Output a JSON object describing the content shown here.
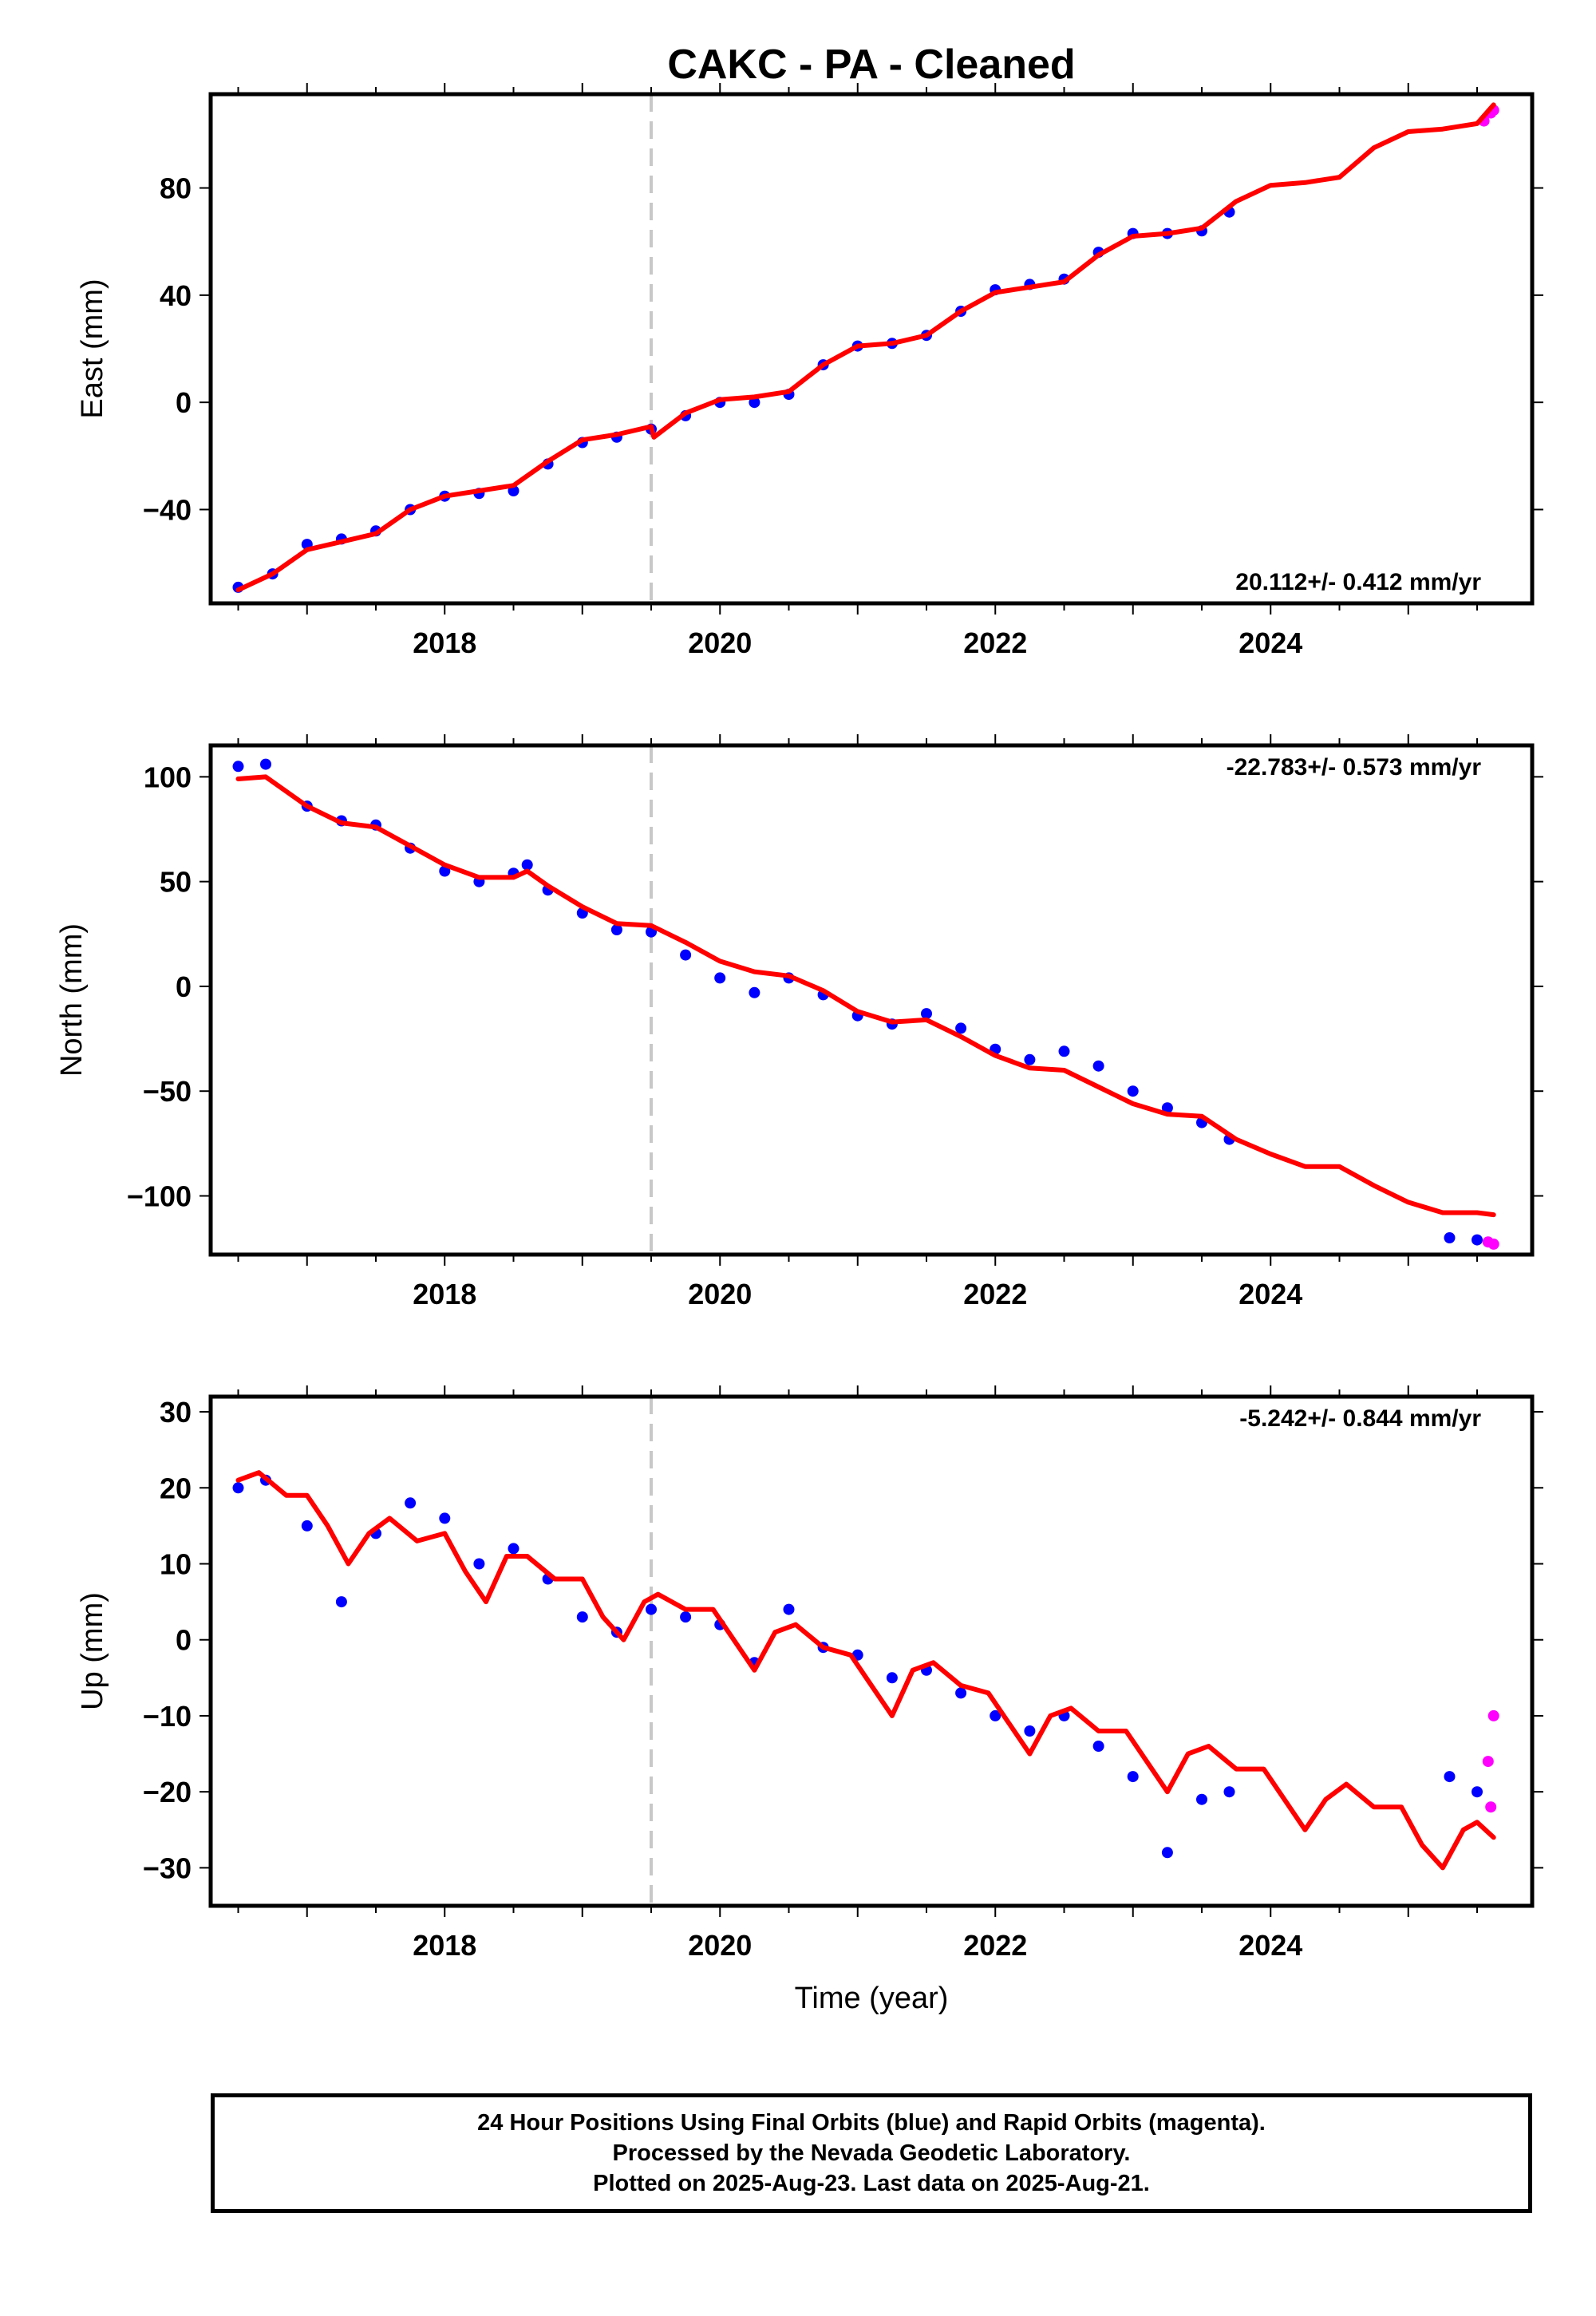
{
  "title": "CAKC  - PA - Cleaned",
  "x_axis_label": "Time (year)",
  "footer": {
    "line1": "24 Hour Positions Using Final Orbits (blue) and Rapid Orbits (magenta).",
    "line2": "Processed by the Nevada Geodetic Laboratory.",
    "line3": "Plotted on 2025-Aug-23. Last data on 2025-Aug-21."
  },
  "colors": {
    "final": "#0000ff",
    "rapid": "#ff00ff",
    "model": "#ff0000",
    "event_line": "#c8c8c8"
  },
  "chart_data": [
    {
      "type": "scatter",
      "panel": "east",
      "ylabel": "East (mm)",
      "rate_label": "20.112+/- 0.412 mm/yr",
      "xlim": [
        2016.3,
        2025.9
      ],
      "ylim": [
        -75,
        115
      ],
      "xticks": [
        2018,
        2020,
        2022,
        2024
      ],
      "yticks": [
        -40,
        0,
        40,
        80
      ],
      "event_line_x": 2019.5,
      "grid": false,
      "series": [
        {
          "kind": "final",
          "points": [
            [
              2016.5,
              -69
            ],
            [
              2016.75,
              -64
            ],
            [
              2017.0,
              -53
            ],
            [
              2017.25,
              -51
            ],
            [
              2017.5,
              -48
            ],
            [
              2017.75,
              -40
            ],
            [
              2018.0,
              -35
            ],
            [
              2018.25,
              -34
            ],
            [
              2018.5,
              -33
            ],
            [
              2018.75,
              -23
            ],
            [
              2019.0,
              -15
            ],
            [
              2019.25,
              -13
            ],
            [
              2019.5,
              -10
            ],
            [
              2019.75,
              -5
            ],
            [
              2020.0,
              0
            ],
            [
              2020.25,
              0
            ],
            [
              2020.5,
              3
            ],
            [
              2020.75,
              14
            ],
            [
              2021.0,
              21
            ],
            [
              2021.25,
              22
            ],
            [
              2021.5,
              25
            ],
            [
              2021.75,
              34
            ],
            [
              2022.0,
              42
            ],
            [
              2022.25,
              44
            ],
            [
              2022.5,
              46
            ],
            [
              2022.75,
              56
            ],
            [
              2023.0,
              63
            ],
            [
              2023.25,
              63
            ],
            [
              2023.5,
              64
            ],
            [
              2023.7,
              71
            ]
          ]
        },
        {
          "kind": "rapid",
          "points": [
            [
              2025.55,
              105
            ],
            [
              2025.6,
              108
            ],
            [
              2025.62,
              109
            ]
          ]
        },
        {
          "kind": "model",
          "points": [
            [
              2016.5,
              -70
            ],
            [
              2016.75,
              -64
            ],
            [
              2017.0,
              -55
            ],
            [
              2017.25,
              -52
            ],
            [
              2017.5,
              -49
            ],
            [
              2017.75,
              -40
            ],
            [
              2018.0,
              -35
            ],
            [
              2018.25,
              -33
            ],
            [
              2018.5,
              -31
            ],
            [
              2018.75,
              -22
            ],
            [
              2019.0,
              -14
            ],
            [
              2019.25,
              -12
            ],
            [
              2019.5,
              -9
            ],
            [
              2019.52,
              -13
            ],
            [
              2019.75,
              -4
            ],
            [
              2020.0,
              1
            ],
            [
              2020.25,
              2
            ],
            [
              2020.5,
              4
            ],
            [
              2020.75,
              14
            ],
            [
              2021.0,
              21
            ],
            [
              2021.25,
              22
            ],
            [
              2021.5,
              25
            ],
            [
              2021.75,
              34
            ],
            [
              2022.0,
              41
            ],
            [
              2022.25,
              43
            ],
            [
              2022.5,
              45
            ],
            [
              2022.75,
              55
            ],
            [
              2023.0,
              62
            ],
            [
              2023.25,
              63
            ],
            [
              2023.5,
              65
            ],
            [
              2023.75,
              75
            ],
            [
              2024.0,
              81
            ],
            [
              2024.25,
              82
            ],
            [
              2024.5,
              84
            ],
            [
              2024.75,
              95
            ],
            [
              2025.0,
              101
            ],
            [
              2025.25,
              102
            ],
            [
              2025.5,
              104
            ],
            [
              2025.62,
              111
            ]
          ]
        }
      ]
    },
    {
      "type": "scatter",
      "panel": "north",
      "ylabel": "North (mm)",
      "rate_label": "-22.783+/- 0.573 mm/yr",
      "xlim": [
        2016.3,
        2025.9
      ],
      "ylim": [
        -128,
        115
      ],
      "xticks": [
        2018,
        2020,
        2022,
        2024
      ],
      "yticks": [
        -100,
        -50,
        0,
        50,
        100
      ],
      "event_line_x": 2019.5,
      "grid": false,
      "series": [
        {
          "kind": "final",
          "points": [
            [
              2016.5,
              105
            ],
            [
              2016.7,
              106
            ],
            [
              2017.0,
              86
            ],
            [
              2017.25,
              79
            ],
            [
              2017.5,
              77
            ],
            [
              2017.75,
              66
            ],
            [
              2018.0,
              55
            ],
            [
              2018.25,
              50
            ],
            [
              2018.5,
              54
            ],
            [
              2018.6,
              58
            ],
            [
              2018.75,
              46
            ],
            [
              2019.0,
              35
            ],
            [
              2019.25,
              27
            ],
            [
              2019.5,
              26
            ],
            [
              2019.75,
              15
            ],
            [
              2020.0,
              4
            ],
            [
              2020.25,
              -3
            ],
            [
              2020.5,
              4
            ],
            [
              2020.75,
              -4
            ],
            [
              2021.0,
              -14
            ],
            [
              2021.25,
              -18
            ],
            [
              2021.5,
              -13
            ],
            [
              2021.75,
              -20
            ],
            [
              2022.0,
              -30
            ],
            [
              2022.25,
              -35
            ],
            [
              2022.5,
              -31
            ],
            [
              2022.75,
              -38
            ],
            [
              2023.0,
              -50
            ],
            [
              2023.25,
              -58
            ],
            [
              2023.5,
              -65
            ],
            [
              2023.7,
              -73
            ],
            [
              2025.3,
              -120
            ],
            [
              2025.5,
              -121
            ]
          ]
        },
        {
          "kind": "rapid",
          "points": [
            [
              2025.58,
              -122
            ],
            [
              2025.62,
              -123
            ]
          ]
        },
        {
          "kind": "model",
          "points": [
            [
              2016.5,
              99
            ],
            [
              2016.7,
              100
            ],
            [
              2017.0,
              86
            ],
            [
              2017.25,
              78
            ],
            [
              2017.5,
              76
            ],
            [
              2017.75,
              67
            ],
            [
              2018.0,
              58
            ],
            [
              2018.25,
              52
            ],
            [
              2018.5,
              52
            ],
            [
              2018.6,
              55
            ],
            [
              2018.75,
              48
            ],
            [
              2019.0,
              38
            ],
            [
              2019.25,
              30
            ],
            [
              2019.5,
              29
            ],
            [
              2019.75,
              21
            ],
            [
              2020.0,
              12
            ],
            [
              2020.25,
              7
            ],
            [
              2020.5,
              5
            ],
            [
              2020.75,
              -2
            ],
            [
              2021.0,
              -12
            ],
            [
              2021.25,
              -17
            ],
            [
              2021.5,
              -16
            ],
            [
              2021.75,
              -24
            ],
            [
              2022.0,
              -33
            ],
            [
              2022.25,
              -39
            ],
            [
              2022.5,
              -40
            ],
            [
              2022.75,
              -48
            ],
            [
              2023.0,
              -56
            ],
            [
              2023.25,
              -61
            ],
            [
              2023.5,
              -62
            ],
            [
              2023.75,
              -73
            ],
            [
              2024.0,
              -80
            ],
            [
              2024.25,
              -86
            ],
            [
              2024.5,
              -86
            ],
            [
              2024.75,
              -95
            ],
            [
              2025.0,
              -103
            ],
            [
              2025.25,
              -108
            ],
            [
              2025.5,
              -108
            ],
            [
              2025.62,
              -109
            ]
          ]
        }
      ]
    },
    {
      "type": "scatter",
      "panel": "up",
      "ylabel": "Up (mm)",
      "rate_label": "-5.242+/- 0.844 mm/yr",
      "xlim": [
        2016.3,
        2025.9
      ],
      "ylim": [
        -35,
        32
      ],
      "xticks": [
        2018,
        2020,
        2022,
        2024
      ],
      "yticks": [
        -30,
        -20,
        -10,
        0,
        10,
        20,
        30
      ],
      "event_line_x": 2019.5,
      "grid": false,
      "series": [
        {
          "kind": "final",
          "points": [
            [
              2016.5,
              20
            ],
            [
              2016.7,
              21
            ],
            [
              2017.0,
              15
            ],
            [
              2017.25,
              5
            ],
            [
              2017.5,
              14
            ],
            [
              2017.75,
              18
            ],
            [
              2018.0,
              16
            ],
            [
              2018.25,
              10
            ],
            [
              2018.5,
              12
            ],
            [
              2018.75,
              8
            ],
            [
              2019.0,
              3
            ],
            [
              2019.25,
              1
            ],
            [
              2019.5,
              4
            ],
            [
              2019.75,
              3
            ],
            [
              2020.0,
              2
            ],
            [
              2020.25,
              -3
            ],
            [
              2020.5,
              4
            ],
            [
              2020.75,
              -1
            ],
            [
              2021.0,
              -2
            ],
            [
              2021.25,
              -5
            ],
            [
              2021.5,
              -4
            ],
            [
              2021.75,
              -7
            ],
            [
              2022.0,
              -10
            ],
            [
              2022.25,
              -12
            ],
            [
              2022.5,
              -10
            ],
            [
              2022.75,
              -14
            ],
            [
              2023.0,
              -18
            ],
            [
              2023.25,
              -28
            ],
            [
              2023.5,
              -21
            ],
            [
              2023.7,
              -20
            ],
            [
              2025.3,
              -18
            ],
            [
              2025.5,
              -20
            ]
          ]
        },
        {
          "kind": "rapid",
          "points": [
            [
              2025.58,
              -16
            ],
            [
              2025.6,
              -22
            ],
            [
              2025.62,
              -10
            ]
          ]
        },
        {
          "kind": "model",
          "points": [
            [
              2016.5,
              21
            ],
            [
              2016.65,
              22
            ],
            [
              2016.85,
              19
            ],
            [
              2017.0,
              19
            ],
            [
              2017.15,
              15
            ],
            [
              2017.3,
              10
            ],
            [
              2017.45,
              14
            ],
            [
              2017.6,
              16
            ],
            [
              2017.8,
              13
            ],
            [
              2018.0,
              14
            ],
            [
              2018.15,
              9
            ],
            [
              2018.3,
              5
            ],
            [
              2018.45,
              11
            ],
            [
              2018.6,
              11
            ],
            [
              2018.8,
              8
            ],
            [
              2019.0,
              8
            ],
            [
              2019.15,
              3
            ],
            [
              2019.3,
              0
            ],
            [
              2019.45,
              5
            ],
            [
              2019.55,
              6
            ],
            [
              2019.75,
              4
            ],
            [
              2019.95,
              4
            ],
            [
              2020.1,
              0
            ],
            [
              2020.25,
              -4
            ],
            [
              2020.4,
              1
            ],
            [
              2020.55,
              2
            ],
            [
              2020.75,
              -1
            ],
            [
              2020.95,
              -2
            ],
            [
              2021.1,
              -6
            ],
            [
              2021.25,
              -10
            ],
            [
              2021.4,
              -4
            ],
            [
              2021.55,
              -3
            ],
            [
              2021.75,
              -6
            ],
            [
              2021.95,
              -7
            ],
            [
              2022.1,
              -11
            ],
            [
              2022.25,
              -15
            ],
            [
              2022.4,
              -10
            ],
            [
              2022.55,
              -9
            ],
            [
              2022.75,
              -12
            ],
            [
              2022.95,
              -12
            ],
            [
              2023.1,
              -16
            ],
            [
              2023.25,
              -20
            ],
            [
              2023.4,
              -15
            ],
            [
              2023.55,
              -14
            ],
            [
              2023.75,
              -17
            ],
            [
              2023.95,
              -17
            ],
            [
              2024.1,
              -21
            ],
            [
              2024.25,
              -25
            ],
            [
              2024.4,
              -21
            ],
            [
              2024.55,
              -19
            ],
            [
              2024.75,
              -22
            ],
            [
              2024.95,
              -22
            ],
            [
              2025.1,
              -27
            ],
            [
              2025.25,
              -30
            ],
            [
              2025.4,
              -25
            ],
            [
              2025.5,
              -24
            ],
            [
              2025.62,
              -26
            ]
          ]
        }
      ]
    }
  ]
}
